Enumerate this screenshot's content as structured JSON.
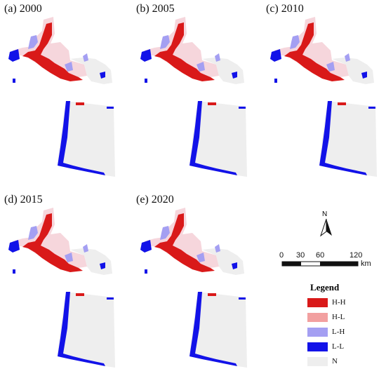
{
  "panels": [
    {
      "label": "(a) 2000"
    },
    {
      "label": "(b) 2005"
    },
    {
      "label": "(c) 2010"
    },
    {
      "label": "(d) 2015"
    },
    {
      "label": "(e) 2020"
    }
  ],
  "north_arrow": {
    "label": "N"
  },
  "scale_bar": {
    "ticks": [
      "0",
      "30",
      "60",
      "120"
    ],
    "unit": "km"
  },
  "legend": {
    "title": "Legend",
    "items": [
      {
        "label": "H-H",
        "color": "#d91919"
      },
      {
        "label": "H-L",
        "color": "#f2a0a0"
      },
      {
        "label": "L-H",
        "color": "#a49ff2"
      },
      {
        "label": "L-L",
        "color": "#1212e8"
      },
      {
        "label": "N",
        "color": "#eeeeee"
      }
    ]
  }
}
